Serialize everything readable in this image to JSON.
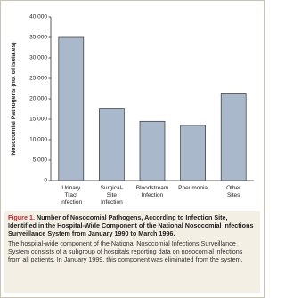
{
  "chart_data": {
    "type": "bar",
    "y_label": "Nosocomial Pathogens (no. of isolates)",
    "categories": [
      "Urinary Tract Infection",
      "Surgical-Site Infection",
      "Bloodstream Infection",
      "Pneumonia",
      "Other Sites"
    ],
    "values": [
      35000,
      17700,
      14500,
      13500,
      21200
    ],
    "color": "#a9b8cb",
    "ylim": [
      0,
      40000
    ],
    "yticks": [
      0,
      {
        "value": 5000,
        "label": "5,000"
      },
      {
        "value": 10000,
        "label": "10,000"
      },
      {
        "value": 15000,
        "label": "15,000"
      },
      {
        "value": 20000,
        "label": "20,000"
      },
      {
        "value": 25000,
        "label": "25,000"
      },
      {
        "value": 30000,
        "label": "30,000"
      },
      {
        "value": 35000,
        "label": "35,000"
      },
      {
        "value": 40000,
        "label": "40,000"
      }
    ],
    "grid": false
  },
  "caption": {
    "label": "Figure 1.",
    "title": "Number of Nosocomial Pathogens, According to Infection Site, Identified in the Hospital-Wide Component of the National Nosocomial Infections Surveillance System from January 1990 to March 1996.",
    "text": "The hospital-wide component of the National Nosocomial Infections Surveillance System consists of a subgroup of hospitals reporting data on nosocomial infections from all patients. In January 1999, this component was eliminated from the system."
  }
}
